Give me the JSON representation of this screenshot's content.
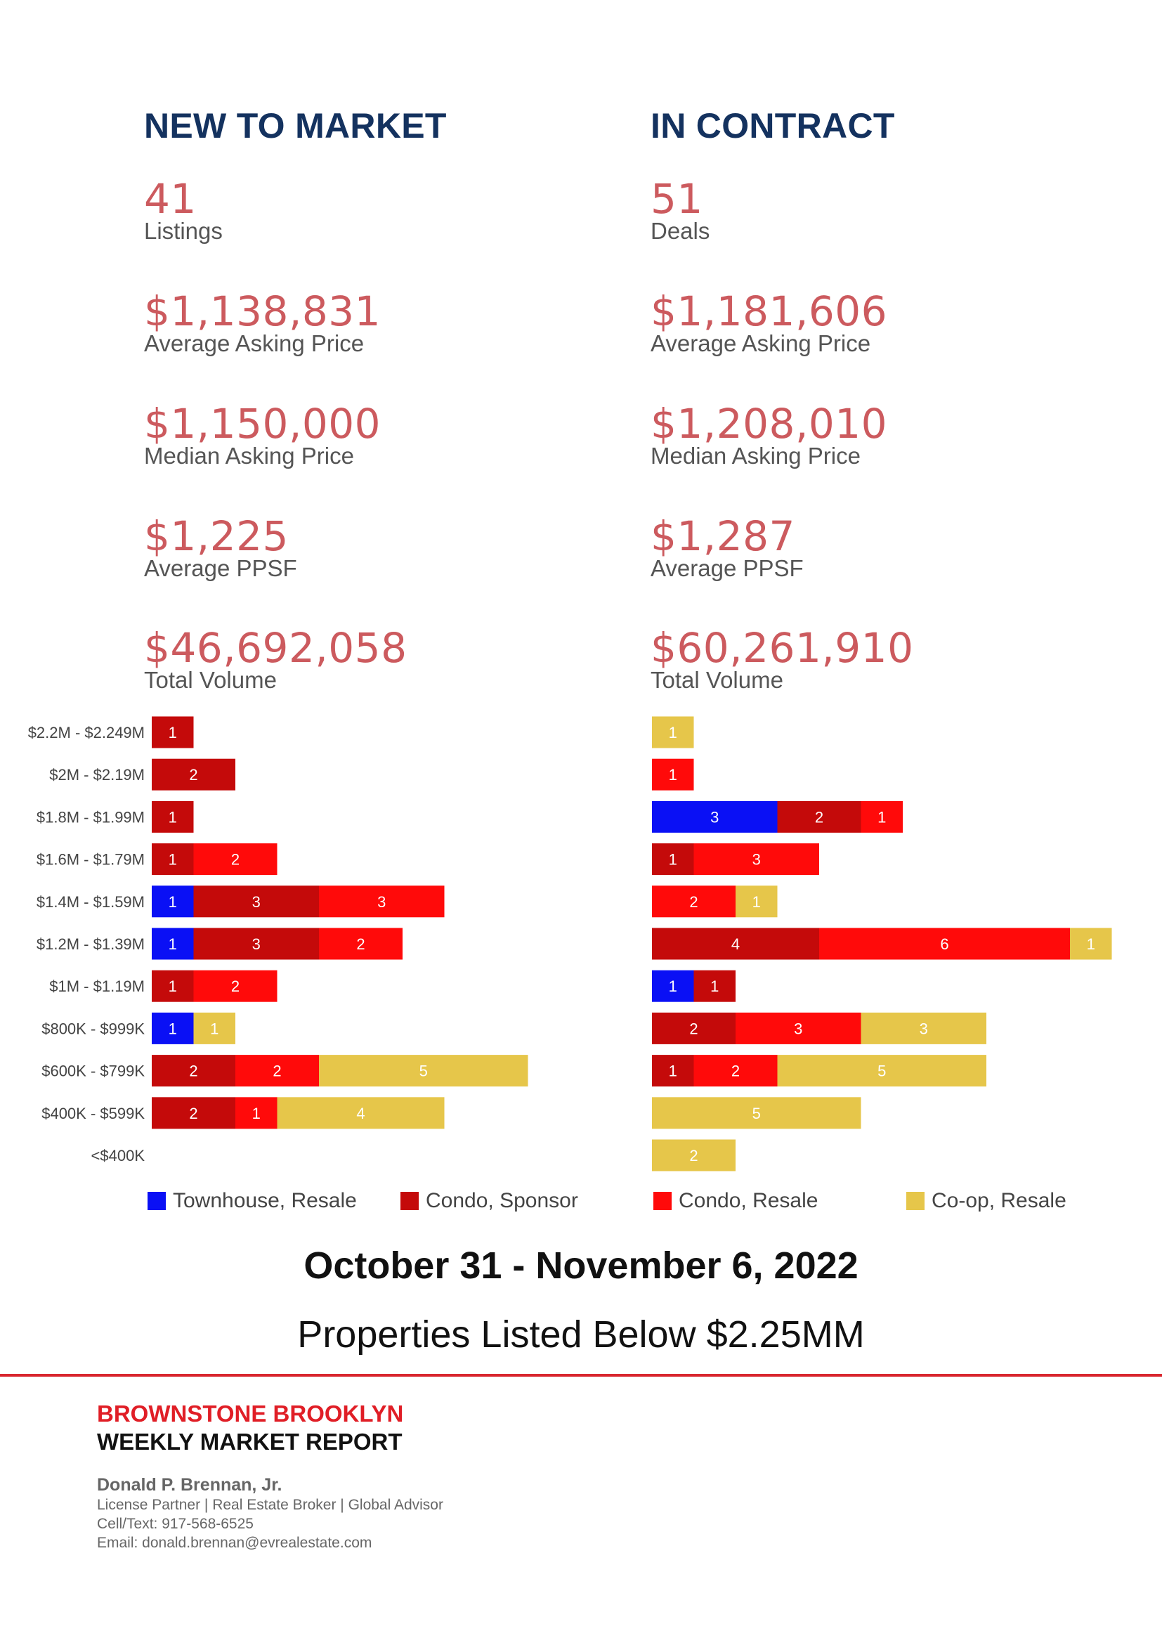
{
  "new_to_market": {
    "title": "NEW TO MARKET",
    "stats": [
      {
        "value": "41",
        "label": "Listings"
      },
      {
        "value": "$1,138,831",
        "label": "Average Asking Price"
      },
      {
        "value": "$1,150,000",
        "label": "Median Asking Price"
      },
      {
        "value": "$1,225",
        "label": "Average PPSF"
      },
      {
        "value": "$46,692,058",
        "label": "Total Volume"
      }
    ]
  },
  "in_contract": {
    "title": "IN CONTRACT",
    "stats": [
      {
        "value": "51",
        "label": "Deals"
      },
      {
        "value": "$1,181,606",
        "label": "Average Asking Price"
      },
      {
        "value": "$1,208,010",
        "label": "Median Asking Price"
      },
      {
        "value": "$1,287",
        "label": "Average PPSF"
      },
      {
        "value": "$60,261,910",
        "label": "Total Volume"
      }
    ]
  },
  "chart_data": {
    "type": "bar",
    "orientation": "horizontal",
    "stacked": true,
    "categories": [
      "$2.2M - $2.249M",
      "$2M - $2.19M",
      "$1.8M - $1.99M",
      "$1.6M - $1.79M",
      "$1.4M - $1.59M",
      "$1.2M - $1.39M",
      "$1M - $1.19M",
      "$800K - $999K",
      "$600K - $799K",
      "$400K - $599K",
      "<$400K"
    ],
    "series_names": [
      "Townhouse, Resale",
      "Condo, Sponsor",
      "Condo, Resale",
      "Co-op, Resale"
    ],
    "colors": [
      "#0a10f5",
      "#c40a0a",
      "#ff0a0a",
      "#e6c64a"
    ],
    "panels": [
      {
        "name": "NEW TO MARKET",
        "series": [
          {
            "name": "Townhouse, Resale",
            "values": [
              0,
              0,
              0,
              0,
              1,
              1,
              0,
              1,
              0,
              0,
              0
            ]
          },
          {
            "name": "Condo, Sponsor",
            "values": [
              1,
              2,
              1,
              1,
              3,
              3,
              1,
              0,
              2,
              2,
              0
            ]
          },
          {
            "name": "Condo, Resale",
            "values": [
              0,
              0,
              0,
              2,
              3,
              2,
              2,
              0,
              2,
              1,
              0
            ]
          },
          {
            "name": "Co-op, Resale",
            "values": [
              0,
              0,
              0,
              0,
              0,
              0,
              0,
              1,
              5,
              4,
              0
            ]
          }
        ]
      },
      {
        "name": "IN CONTRACT",
        "series": [
          {
            "name": "Townhouse, Resale",
            "values": [
              0,
              0,
              3,
              0,
              0,
              0,
              1,
              0,
              0,
              0,
              0
            ]
          },
          {
            "name": "Condo, Sponsor",
            "values": [
              0,
              0,
              2,
              1,
              0,
              4,
              1,
              2,
              1,
              0,
              0
            ]
          },
          {
            "name": "Condo, Resale",
            "values": [
              0,
              1,
              1,
              3,
              2,
              6,
              0,
              3,
              2,
              0,
              0
            ]
          },
          {
            "name": "Co-op, Resale",
            "values": [
              1,
              0,
              0,
              0,
              1,
              1,
              0,
              3,
              5,
              5,
              2
            ]
          }
        ]
      }
    ],
    "legend": "bottom"
  },
  "legend": [
    {
      "label": "Townhouse, Resale",
      "color": "#0a10f5"
    },
    {
      "label": "Condo, Sponsor",
      "color": "#c40a0a"
    },
    {
      "label": "Condo, Resale",
      "color": "#ff0a0a"
    },
    {
      "label": "Co-op, Resale",
      "color": "#e6c64a"
    }
  ],
  "date_range": "October 31 - November 6, 2022",
  "subtitle": "Properties Listed Below $2.25MM",
  "footer": {
    "brand": "BROWNSTONE BROOKLYN",
    "report": "WEEKLY MARKET REPORT",
    "agent_name": "Donald P. Brennan, Jr.",
    "agent_title": "License Partner | Real Estate Broker | Global Advisor",
    "phone": "Cell/Text: 917-568-6525",
    "email": "Email: donald.brennan@evrealestate.com"
  }
}
